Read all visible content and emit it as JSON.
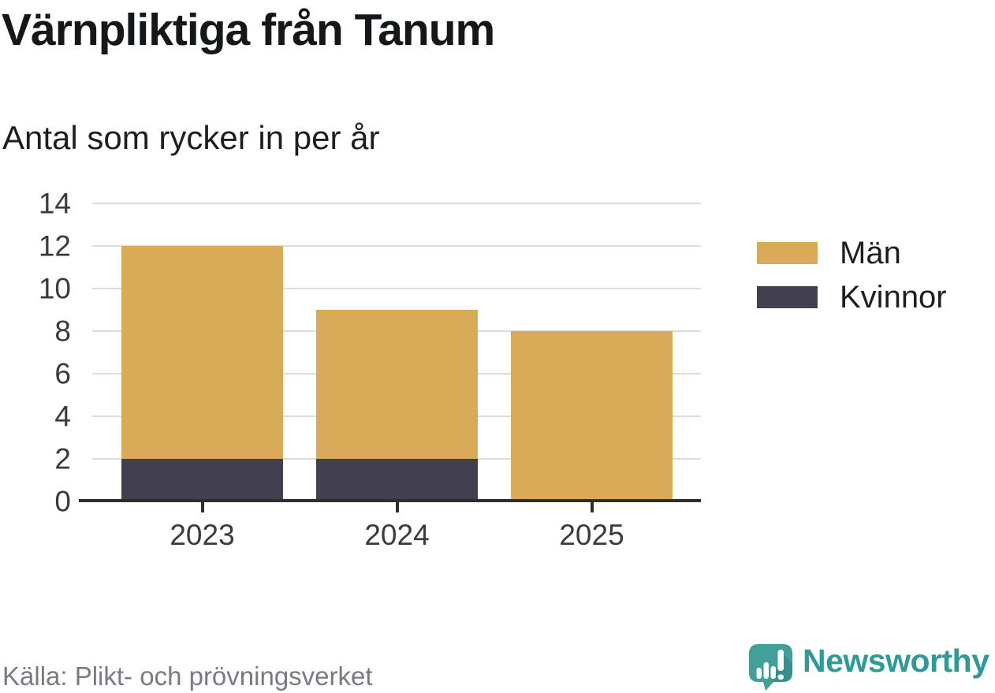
{
  "title": "Värnpliktiga från Tanum",
  "subtitle": "Antal som rycker in per år",
  "source": "Källa: Plikt- och prövningsverket",
  "brand": {
    "name": "Newsworthy",
    "color": "#2f9a96",
    "icon": "speech-bubble-bar-chart-icon",
    "icon_color": "#41a09a"
  },
  "colors": {
    "background": "#ffffff",
    "men": "#d9ab58",
    "women": "#42404f",
    "grid": "#dddddd",
    "axis": "#2e2e2e",
    "tick_label": "#3b3b3b",
    "title_text": "#14181b",
    "source_text": "#7b7983"
  },
  "chart_data": {
    "type": "bar",
    "stacked": true,
    "title": "Värnpliktiga från Tanum",
    "subtitle": "Antal som rycker in per år",
    "categories": [
      "2023",
      "2024",
      "2025"
    ],
    "series": [
      {
        "name": "Män",
        "color": "#d9ab58",
        "values": [
          10,
          7,
          8
        ]
      },
      {
        "name": "Kvinnor",
        "color": "#42404f",
        "values": [
          2,
          2,
          0
        ]
      }
    ],
    "stack_order_bottom_to_top": [
      "Kvinnor",
      "Män"
    ],
    "stack_totals": [
      12,
      9,
      8
    ],
    "xlabel": "",
    "ylabel": "",
    "ylim": [
      0,
      14
    ],
    "yticks": [
      0,
      2,
      4,
      6,
      8,
      10,
      12,
      14
    ],
    "grid": true,
    "legend_position": "right",
    "legend": [
      "Män",
      "Kvinnor"
    ]
  }
}
